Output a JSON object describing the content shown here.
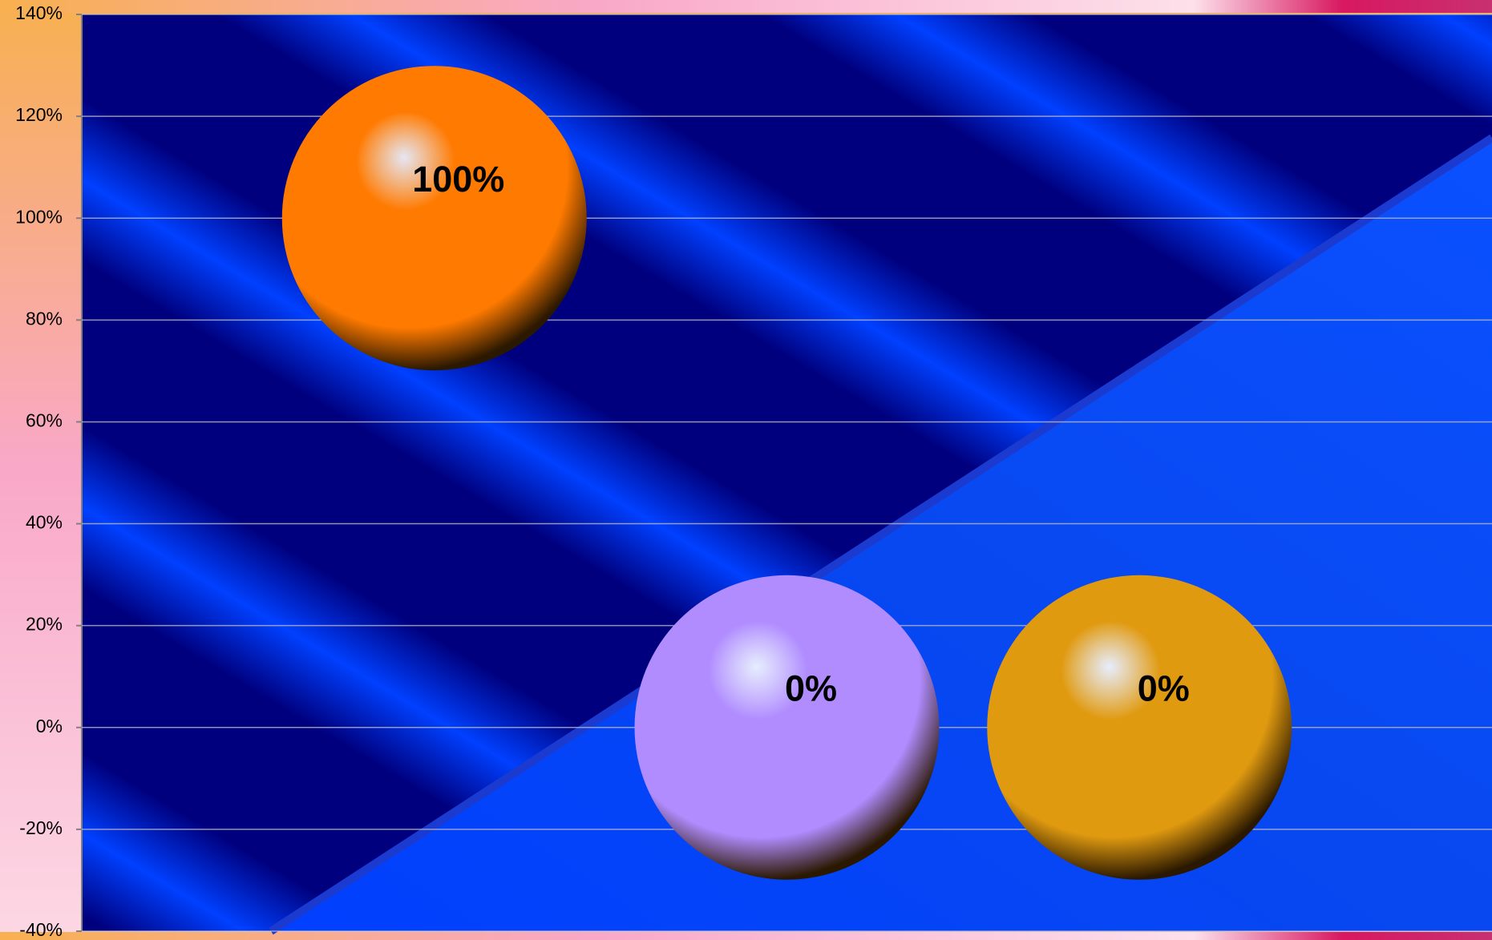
{
  "chart_data": {
    "type": "bubble",
    "x": [
      1,
      2,
      3
    ],
    "xlim": [
      0,
      4
    ],
    "values": [
      100,
      0,
      0
    ],
    "value_labels": [
      "100%",
      "0%",
      "0%"
    ],
    "colors": [
      "#ff7a00",
      "#b08cff",
      "#e09a10"
    ],
    "ylim": [
      -40,
      140
    ],
    "yticks": [
      {
        "value": -40,
        "label": "-40%"
      },
      {
        "value": -20,
        "label": "-20%"
      },
      {
        "value": 0,
        "label": "0%"
      },
      {
        "value": 20,
        "label": "20%"
      },
      {
        "value": 40,
        "label": "40%"
      },
      {
        "value": 60,
        "label": "60%"
      },
      {
        "value": 80,
        "label": "80%"
      },
      {
        "value": 100,
        "label": "100%"
      },
      {
        "value": 120,
        "label": "120%"
      },
      {
        "value": 140,
        "label": "140%"
      }
    ],
    "grid": true
  }
}
